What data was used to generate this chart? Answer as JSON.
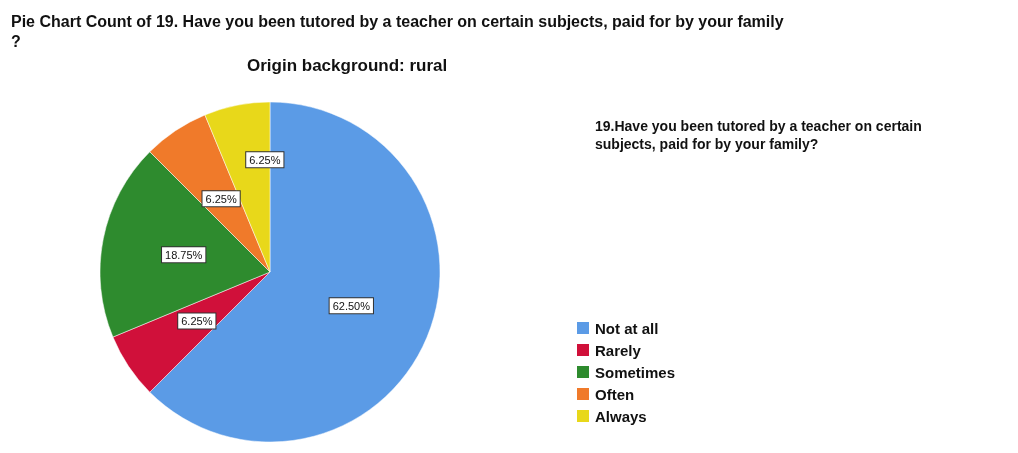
{
  "chart_data": {
    "type": "pie",
    "title": "Pie Chart Count of 19. Have you been tutored by a teacher on certain subjects, paid for by your family?",
    "subtitle": "Origin background: rural",
    "legend_title": "19.Have you been tutored by a teacher on certain subjects, paid for by your family?",
    "categories": [
      "Not at all",
      "Rarely",
      "Sometimes",
      "Often",
      "Always"
    ],
    "values": [
      62.5,
      6.25,
      18.75,
      6.25,
      6.25
    ],
    "value_labels": [
      "62.50%",
      "6.25%",
      "18.75%",
      "6.25%",
      "6.25%"
    ],
    "colors": [
      "#5b9be6",
      "#d0103a",
      "#2e8b2e",
      "#f07a2a",
      "#e8d81a"
    ],
    "legend": "right"
  }
}
